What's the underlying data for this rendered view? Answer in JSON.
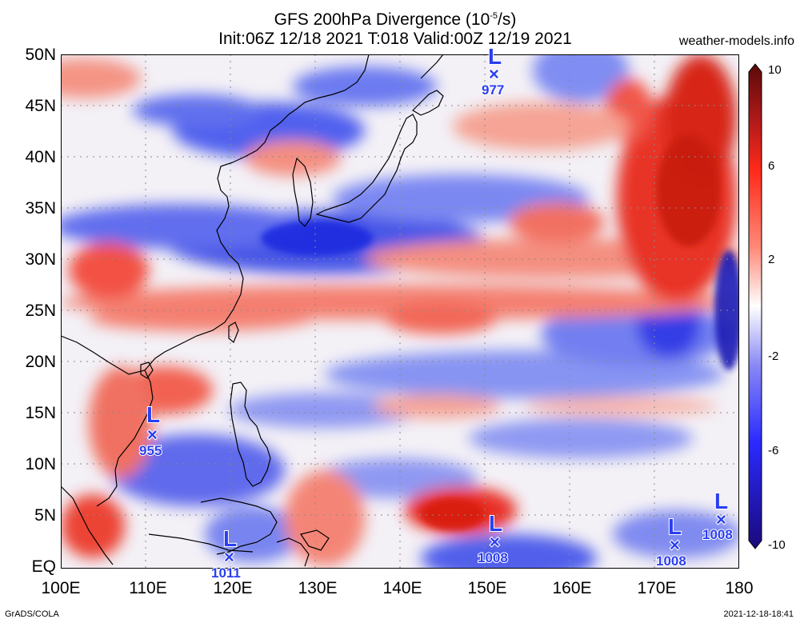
{
  "title": {
    "line1": "GFS 200hPa Divergence (10",
    "line1_sup": "-5",
    "line1_end": "/s)",
    "line2": "Init:06Z 12/18 2021 T:018 Valid:00Z 12/19 2021"
  },
  "site": "weather-models.info",
  "credit_left": "GrADS/COLA",
  "credit_right": "2021-12-18-18:41",
  "y_axis": [
    "50N",
    "45N",
    "40N",
    "35N",
    "30N",
    "25N",
    "20N",
    "15N",
    "10N",
    "5N",
    "EQ"
  ],
  "x_axis": [
    "100E",
    "110E",
    "120E",
    "130E",
    "140E",
    "150E",
    "160E",
    "170E",
    "180"
  ],
  "colorbar": {
    "labels": [
      "10",
      "6",
      "2",
      "-2",
      "-6",
      "-10"
    ],
    "colors": [
      "#5a0a0a",
      "#b31a1a",
      "#ff2a1a",
      "#ff8a7a",
      "#ffffff",
      "#8a8af5",
      "#2a2aff",
      "#1a0a7a"
    ]
  },
  "lows": [
    {
      "pressure": "977"
    },
    {
      "pressure": "955"
    },
    {
      "pressure": "1011"
    },
    {
      "pressure": "1008"
    },
    {
      "pressure": "1008"
    },
    {
      "pressure": "1008"
    }
  ]
}
